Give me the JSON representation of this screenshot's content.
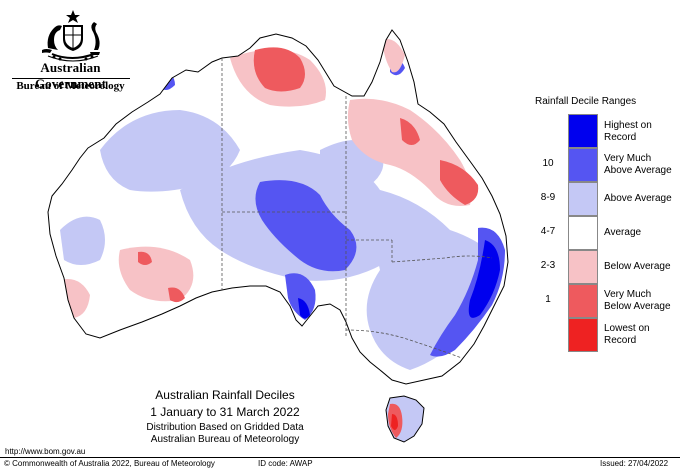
{
  "header": {
    "government": "Australian Government",
    "bureau": "Bureau of Meteorology"
  },
  "map": {
    "title": "Australian Rainfall Deciles",
    "dates": "1 January to 31 March 2022",
    "subtitle1": "Distribution Based on Gridded Data",
    "subtitle2": "Australian Bureau of Meteorology"
  },
  "legend": {
    "title": "Rainfall Decile Ranges",
    "items": [
      {
        "range": "",
        "label": "Highest on Record",
        "color": "#0000ee"
      },
      {
        "range": "10",
        "label": "Very Much Above Average",
        "color": "#5555f2"
      },
      {
        "range": "8-9",
        "label": "Above Average",
        "color": "#c4c8f5"
      },
      {
        "range": "4-7",
        "label": "Average",
        "color": "#ffffff"
      },
      {
        "range": "2-3",
        "label": "Below Average",
        "color": "#f7c2c6"
      },
      {
        "range": "1",
        "label": "Very Much Below Average",
        "color": "#ee5a5e"
      },
      {
        "range": "",
        "label": "Lowest on Record",
        "color": "#ee2222"
      }
    ]
  },
  "footer": {
    "url": "http://www.bom.gov.au",
    "copyright": "© Commonwealth of Australia 2022, Bureau of Meteorology",
    "id_code": "ID code: AWAP",
    "issued": "Issued: 27/04/2022"
  }
}
